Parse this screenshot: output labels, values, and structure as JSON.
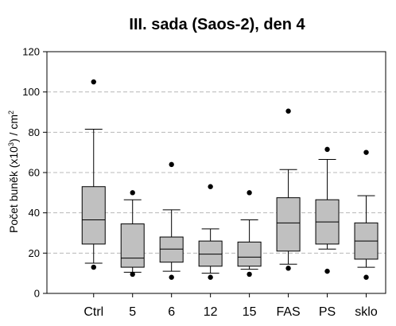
{
  "chart_data": {
    "type": "box",
    "title": "III. sada (Saos-2), den 4",
    "ylabel": {
      "pre": "Počet buněk (x10",
      "sup1": "3",
      "mid": ") / cm",
      "sup2": "2"
    },
    "ylim": [
      0,
      120
    ],
    "yticks": [
      0,
      20,
      40,
      60,
      80,
      100,
      120
    ],
    "grid": "horizontal-dashed",
    "box_color": "#c0c0c0",
    "categories": [
      "Ctrl",
      "5",
      "6",
      "12",
      "15",
      "FAS",
      "PS",
      "sklo"
    ],
    "boxes": [
      {
        "category": "Ctrl",
        "whisker_low": 15,
        "q1": 24.5,
        "median": 36.5,
        "q3": 53,
        "whisker_high": 81.5,
        "outliers": [
          105,
          13
        ]
      },
      {
        "category": "5",
        "whisker_low": 10.5,
        "q1": 13,
        "median": 17.5,
        "q3": 34.5,
        "whisker_high": 46.5,
        "outliers": [
          50,
          9.5
        ]
      },
      {
        "category": "6",
        "whisker_low": 11,
        "q1": 15.5,
        "median": 22,
        "q3": 28,
        "whisker_high": 41.5,
        "outliers": [
          64,
          8
        ]
      },
      {
        "category": "12",
        "whisker_low": 10,
        "q1": 13.5,
        "median": 19.5,
        "q3": 26,
        "whisker_high": 32,
        "outliers": [
          53,
          8
        ]
      },
      {
        "category": "15",
        "whisker_low": 12,
        "q1": 13.5,
        "median": 18,
        "q3": 25.5,
        "whisker_high": 36.5,
        "outliers": [
          50,
          9.5
        ]
      },
      {
        "category": "FAS",
        "whisker_low": 14.5,
        "q1": 21,
        "median": 35,
        "q3": 47.5,
        "whisker_high": 61.5,
        "outliers": [
          90.5,
          12.5
        ]
      },
      {
        "category": "PS",
        "whisker_low": 22,
        "q1": 24.5,
        "median": 35.5,
        "q3": 46.5,
        "whisker_high": 66.5,
        "outliers": [
          71.5,
          11
        ]
      },
      {
        "category": "sklo",
        "whisker_low": 13,
        "q1": 17,
        "median": 26,
        "q3": 35,
        "whisker_high": 48.5,
        "outliers": [
          70,
          8
        ]
      }
    ]
  }
}
